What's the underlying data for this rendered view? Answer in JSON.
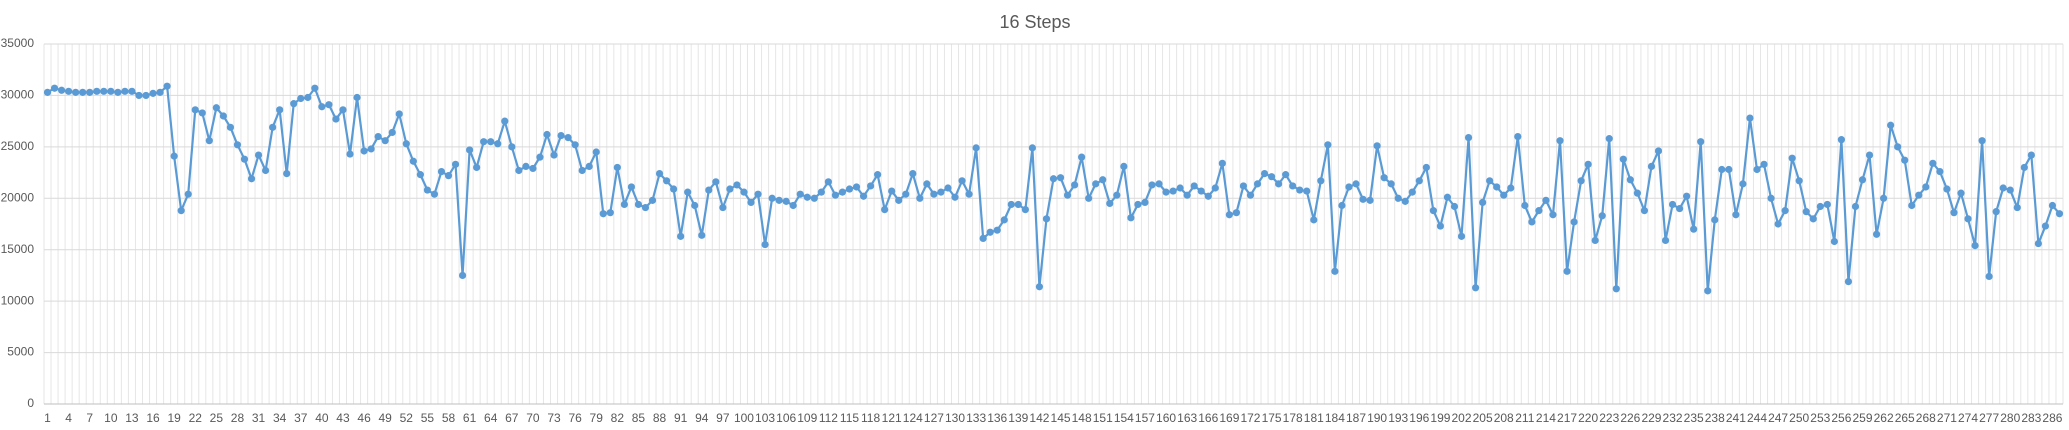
{
  "chart_data": {
    "type": "line",
    "title": "16 Steps",
    "categories": [
      1,
      null,
      null,
      4,
      null,
      null,
      7,
      null,
      null,
      10,
      null,
      null,
      13,
      null,
      null,
      16,
      null,
      null,
      19,
      null,
      null,
      22,
      null,
      null,
      25,
      null,
      null,
      28,
      null,
      null,
      31,
      null,
      null,
      34,
      null,
      null,
      37,
      null,
      null,
      40,
      null,
      null,
      43,
      null,
      null,
      46,
      null,
      null,
      49,
      null,
      null,
      52,
      null,
      null,
      55,
      null,
      null,
      58,
      null,
      null,
      61,
      null,
      null,
      64,
      null,
      null,
      67,
      null,
      null,
      70,
      null,
      null,
      73,
      null,
      null,
      76,
      null,
      null,
      79,
      null,
      null,
      82,
      null,
      null,
      85,
      null,
      null,
      88,
      null,
      null,
      91,
      null,
      null,
      94,
      null,
      null,
      97,
      null,
      null,
      100,
      null,
      null,
      103,
      null,
      null,
      106,
      null,
      null,
      109,
      null,
      null,
      112,
      null,
      null,
      115,
      null,
      null,
      118,
      null,
      null,
      121,
      null,
      null,
      124,
      null,
      null,
      127,
      null,
      null,
      130,
      null,
      null,
      133,
      null,
      null,
      136,
      null,
      null,
      139,
      null,
      null,
      142,
      null,
      null,
      145,
      null,
      null,
      148,
      null,
      null,
      151,
      null,
      null,
      154,
      null,
      null,
      157,
      null,
      null,
      160,
      null,
      null,
      163,
      null,
      null,
      166,
      null,
      null,
      169,
      null,
      null,
      172,
      null,
      null,
      175,
      null,
      null,
      178,
      null,
      null,
      181,
      null,
      null,
      184,
      null,
      null,
      187,
      null,
      null,
      190,
      null,
      null,
      193,
      null,
      null,
      196,
      null,
      null,
      199,
      null,
      null,
      202,
      null,
      null,
      205,
      null,
      null,
      208,
      null,
      null,
      211,
      null,
      null,
      214,
      null,
      null,
      217,
      null,
      null,
      220,
      null,
      null,
      223,
      null,
      null,
      226,
      null,
      null,
      229,
      null,
      null,
      232,
      null,
      null,
      235,
      null,
      null,
      238,
      null,
      null,
      241,
      null,
      null,
      244,
      null,
      null,
      247,
      null,
      null,
      250,
      null,
      null,
      253,
      null,
      null,
      256,
      null,
      null,
      259,
      null,
      null,
      262,
      null,
      null,
      265,
      null,
      null,
      268,
      null,
      null,
      271,
      null,
      null,
      274,
      null,
      null,
      277,
      null,
      null,
      280,
      null,
      null,
      283,
      null,
      null,
      286,
      null
    ],
    "series": [
      {
        "name": "16 Steps",
        "color": "#5b9bd5",
        "values": [
          30300,
          30700,
          30500,
          30400,
          30300,
          30300,
          30300,
          30400,
          30400,
          30400,
          30300,
          30400,
          30400,
          30000,
          30000,
          30200,
          30300,
          30900,
          24100,
          18800,
          20400,
          28600,
          28300,
          25600,
          28800,
          28000,
          26900,
          25200,
          23800,
          21900,
          24200,
          22700,
          26900,
          28600,
          22400,
          29200,
          29700,
          29800,
          30700,
          28900,
          29100,
          27700,
          28600,
          24300,
          29800,
          24600,
          24800,
          26000,
          25600,
          26400,
          28200,
          25300,
          23600,
          22300,
          20800,
          20400,
          22600,
          22200,
          23300,
          12500,
          24700,
          23000,
          25500,
          25500,
          25300,
          27500,
          25000,
          22700,
          23100,
          22900,
          24000,
          26200,
          24200,
          26100,
          25900,
          25200,
          22700,
          23100,
          24500,
          18500,
          18600,
          23000,
          19400,
          21100,
          19400,
          19100,
          19800,
          22400,
          21700,
          20900,
          16300,
          20600,
          19300,
          16400,
          20800,
          21600,
          19100,
          20900,
          21300,
          20600,
          19600,
          20400,
          15500,
          20000,
          19800,
          19700,
          19300,
          20400,
          20100,
          20000,
          20600,
          21600,
          20300,
          20600,
          20900,
          21100,
          20200,
          21200,
          22300,
          18900,
          20700,
          19800,
          20400,
          22400,
          20000,
          21400,
          20400,
          20600,
          21000,
          20100,
          21700,
          20400,
          24900,
          16100,
          16700,
          16900,
          17900,
          19400,
          19400,
          18900,
          24900,
          11400,
          18000,
          21900,
          22000,
          20300,
          21300,
          24000,
          20000,
          21400,
          21800,
          19500,
          20300,
          23100,
          18100,
          19400,
          19600,
          21300,
          21400,
          20600,
          20700,
          21000,
          20300,
          21200,
          20700,
          20200,
          21000,
          23400,
          18400,
          18600,
          21200,
          20300,
          21400,
          22400,
          22100,
          21400,
          22300,
          21200,
          20800,
          20700,
          17900,
          21700,
          25200,
          12900,
          19300,
          21100,
          21400,
          19900,
          19800,
          25100,
          22000,
          21400,
          20000,
          19700,
          20600,
          21700,
          23000,
          18800,
          17300,
          20100,
          19200,
          16300,
          25900,
          11300,
          19600,
          21700,
          21100,
          20300,
          21000,
          26000,
          19300,
          17700,
          18800,
          19800,
          18400,
          25600,
          12900,
          17700,
          21700,
          23300,
          15900,
          18300,
          25800,
          11200,
          23800,
          21800,
          20500,
          18800,
          23100,
          24600,
          15900,
          19400,
          19000,
          20200,
          17000,
          25500,
          11000,
          17900,
          22800,
          22800,
          18400,
          21400,
          27800,
          22800,
          23300,
          20000,
          17500,
          18800,
          23900,
          21700,
          18700,
          18000,
          19200,
          19400,
          15800,
          25700,
          11900,
          19200,
          21800,
          24200,
          16500,
          20000,
          27100,
          25000,
          23700,
          19300,
          20300,
          21100,
          23400,
          22600,
          20900,
          18600,
          20500,
          18000,
          15400,
          25600,
          12400,
          18700,
          21000,
          20800,
          19100,
          23000,
          24200,
          15600,
          17300,
          19300,
          18500
        ]
      }
    ],
    "ylim": [
      0,
      35000
    ],
    "yticks": [
      0,
      5000,
      10000,
      15000,
      20000,
      25000,
      30000,
      35000
    ],
    "grid": true
  }
}
